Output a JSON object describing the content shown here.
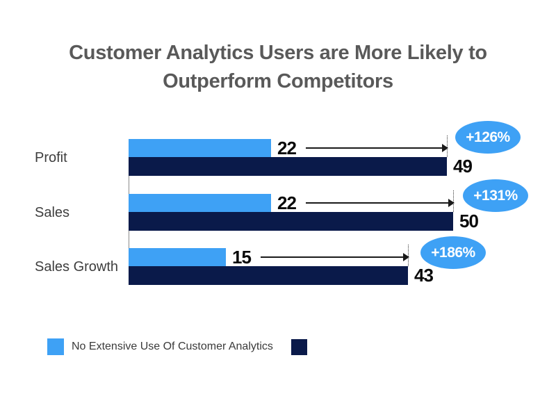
{
  "title": {
    "line1": "Customer Analytics Users are More Likely to",
    "line2": "Outperform Competitors"
  },
  "colors": {
    "series1": "#3EA1F5",
    "series2": "#0A1A4A",
    "bubble_bg": "#3EA1F5",
    "bubble_text": "#FFFFFF",
    "title_text": "#595959",
    "category_text": "#3D3D3D",
    "value_text": "#0A0A0A",
    "arrow": "#1A1A1A",
    "axis_line": "#8A8A8A"
  },
  "legend": {
    "items": [
      {
        "label": "No Extensive Use Of Customer Analytics",
        "color": "#3EA1F5"
      },
      {
        "label": "",
        "color": "#0A1A4A"
      }
    ]
  },
  "chart_data": {
    "type": "bar",
    "orientation": "horizontal",
    "title": "Customer Analytics Users are More Likely to Outperform Competitors",
    "categories": [
      "Profit",
      "Sales",
      "Sales Growth"
    ],
    "series": [
      {
        "name": "No Extensive Use Of Customer Analytics",
        "color": "#3EA1F5",
        "values": [
          22,
          22,
          15
        ]
      },
      {
        "name": "",
        "color": "#0A1A4A",
        "values": [
          49,
          50,
          43
        ]
      }
    ],
    "annotations": [
      "+126%",
      "+131%",
      "+186%"
    ],
    "value_labels_shown": true,
    "xlim": [
      0,
      55
    ],
    "grid": false,
    "legend_position": "bottom-left"
  }
}
